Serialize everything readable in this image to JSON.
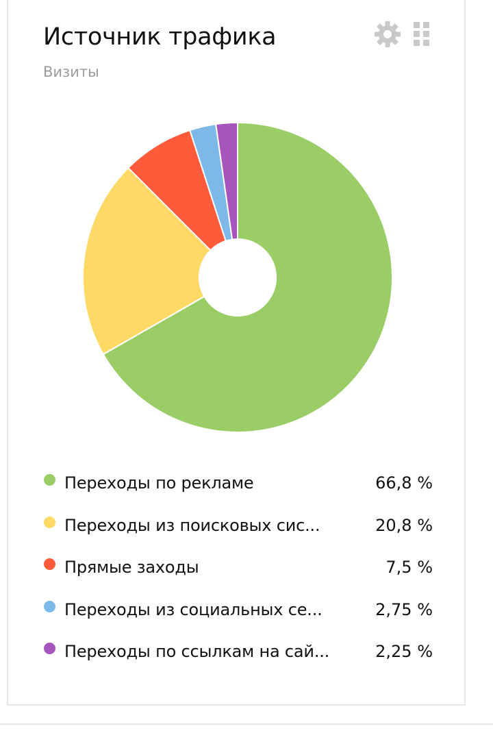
{
  "widget": {
    "title": "Источник трафика",
    "subtitle": "Визиты",
    "settings_icon": "gear-icon",
    "drag_icon": "drag-handle-icon"
  },
  "chart_data": {
    "type": "pie",
    "donut": true,
    "grid": false,
    "legend_position": "bottom",
    "categories": [
      "Переходы по рекламе",
      "Переходы из поисковых сис...",
      "Прямые заходы",
      "Переходы из социальных се...",
      "Переходы по ссылкам на сай..."
    ],
    "values": [
      66.8,
      20.8,
      7.5,
      2.75,
      2.25
    ],
    "value_labels": [
      "66,8 %",
      "20,8 %",
      "7,5 %",
      "2,75 %",
      "2,25 %"
    ],
    "colors": [
      "#9acd66",
      "#ffd966",
      "#ff5b3a",
      "#7db9e8",
      "#a655bd"
    ]
  }
}
